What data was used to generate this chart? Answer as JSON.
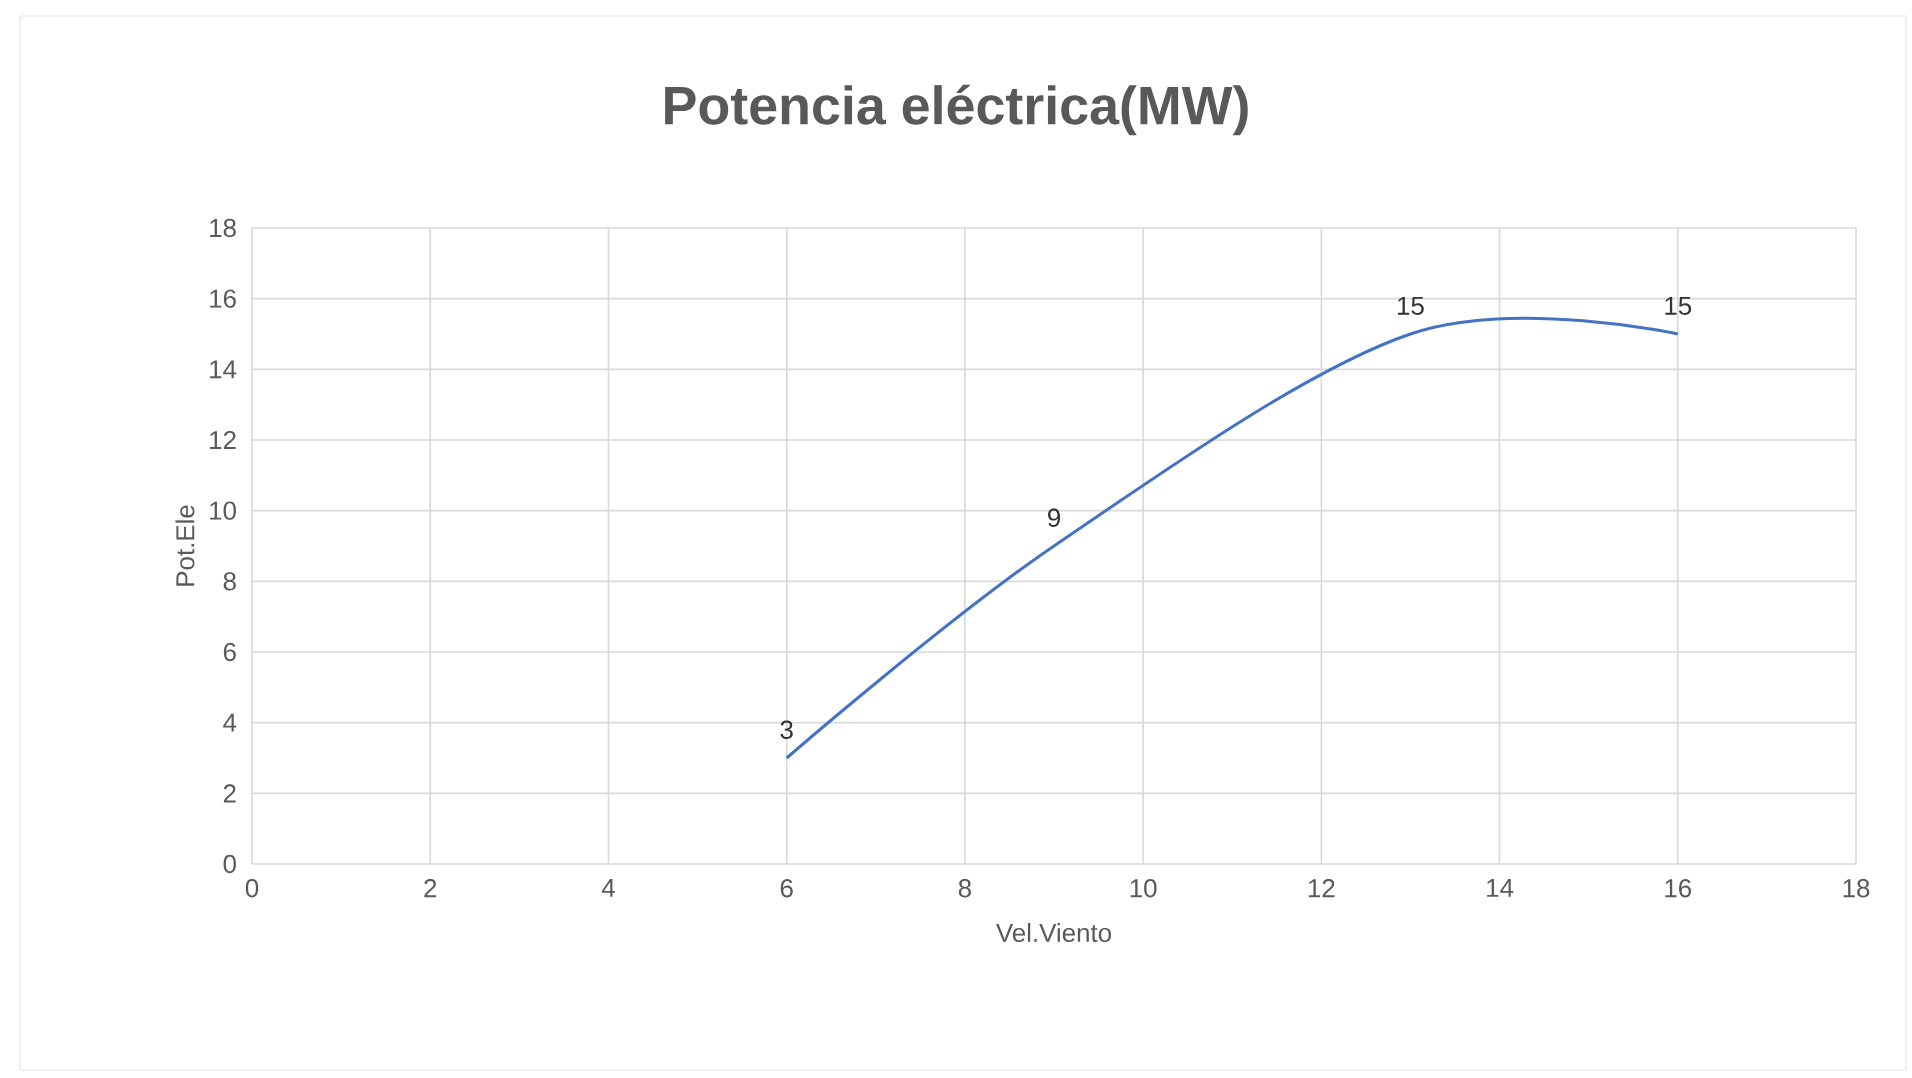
{
  "chart_data": {
    "type": "line",
    "title": "Potencia eléctrica(MW)",
    "xlabel": "Vel.Viento",
    "ylabel": "Pot.Ele",
    "x": [
      6,
      9,
      13,
      16
    ],
    "values": [
      3,
      9,
      15,
      15
    ],
    "value_labels": [
      "3",
      "9",
      "15",
      "15"
    ],
    "color": "#4472c4",
    "xlim": [
      0,
      18
    ],
    "ylim": [
      0,
      18
    ],
    "xticks": [
      0,
      2,
      4,
      6,
      8,
      10,
      12,
      14,
      16,
      18
    ],
    "yticks": [
      0,
      2,
      4,
      6,
      8,
      10,
      12,
      14,
      16,
      18
    ],
    "grid": true,
    "marker": "none",
    "line_style": "solid"
  }
}
